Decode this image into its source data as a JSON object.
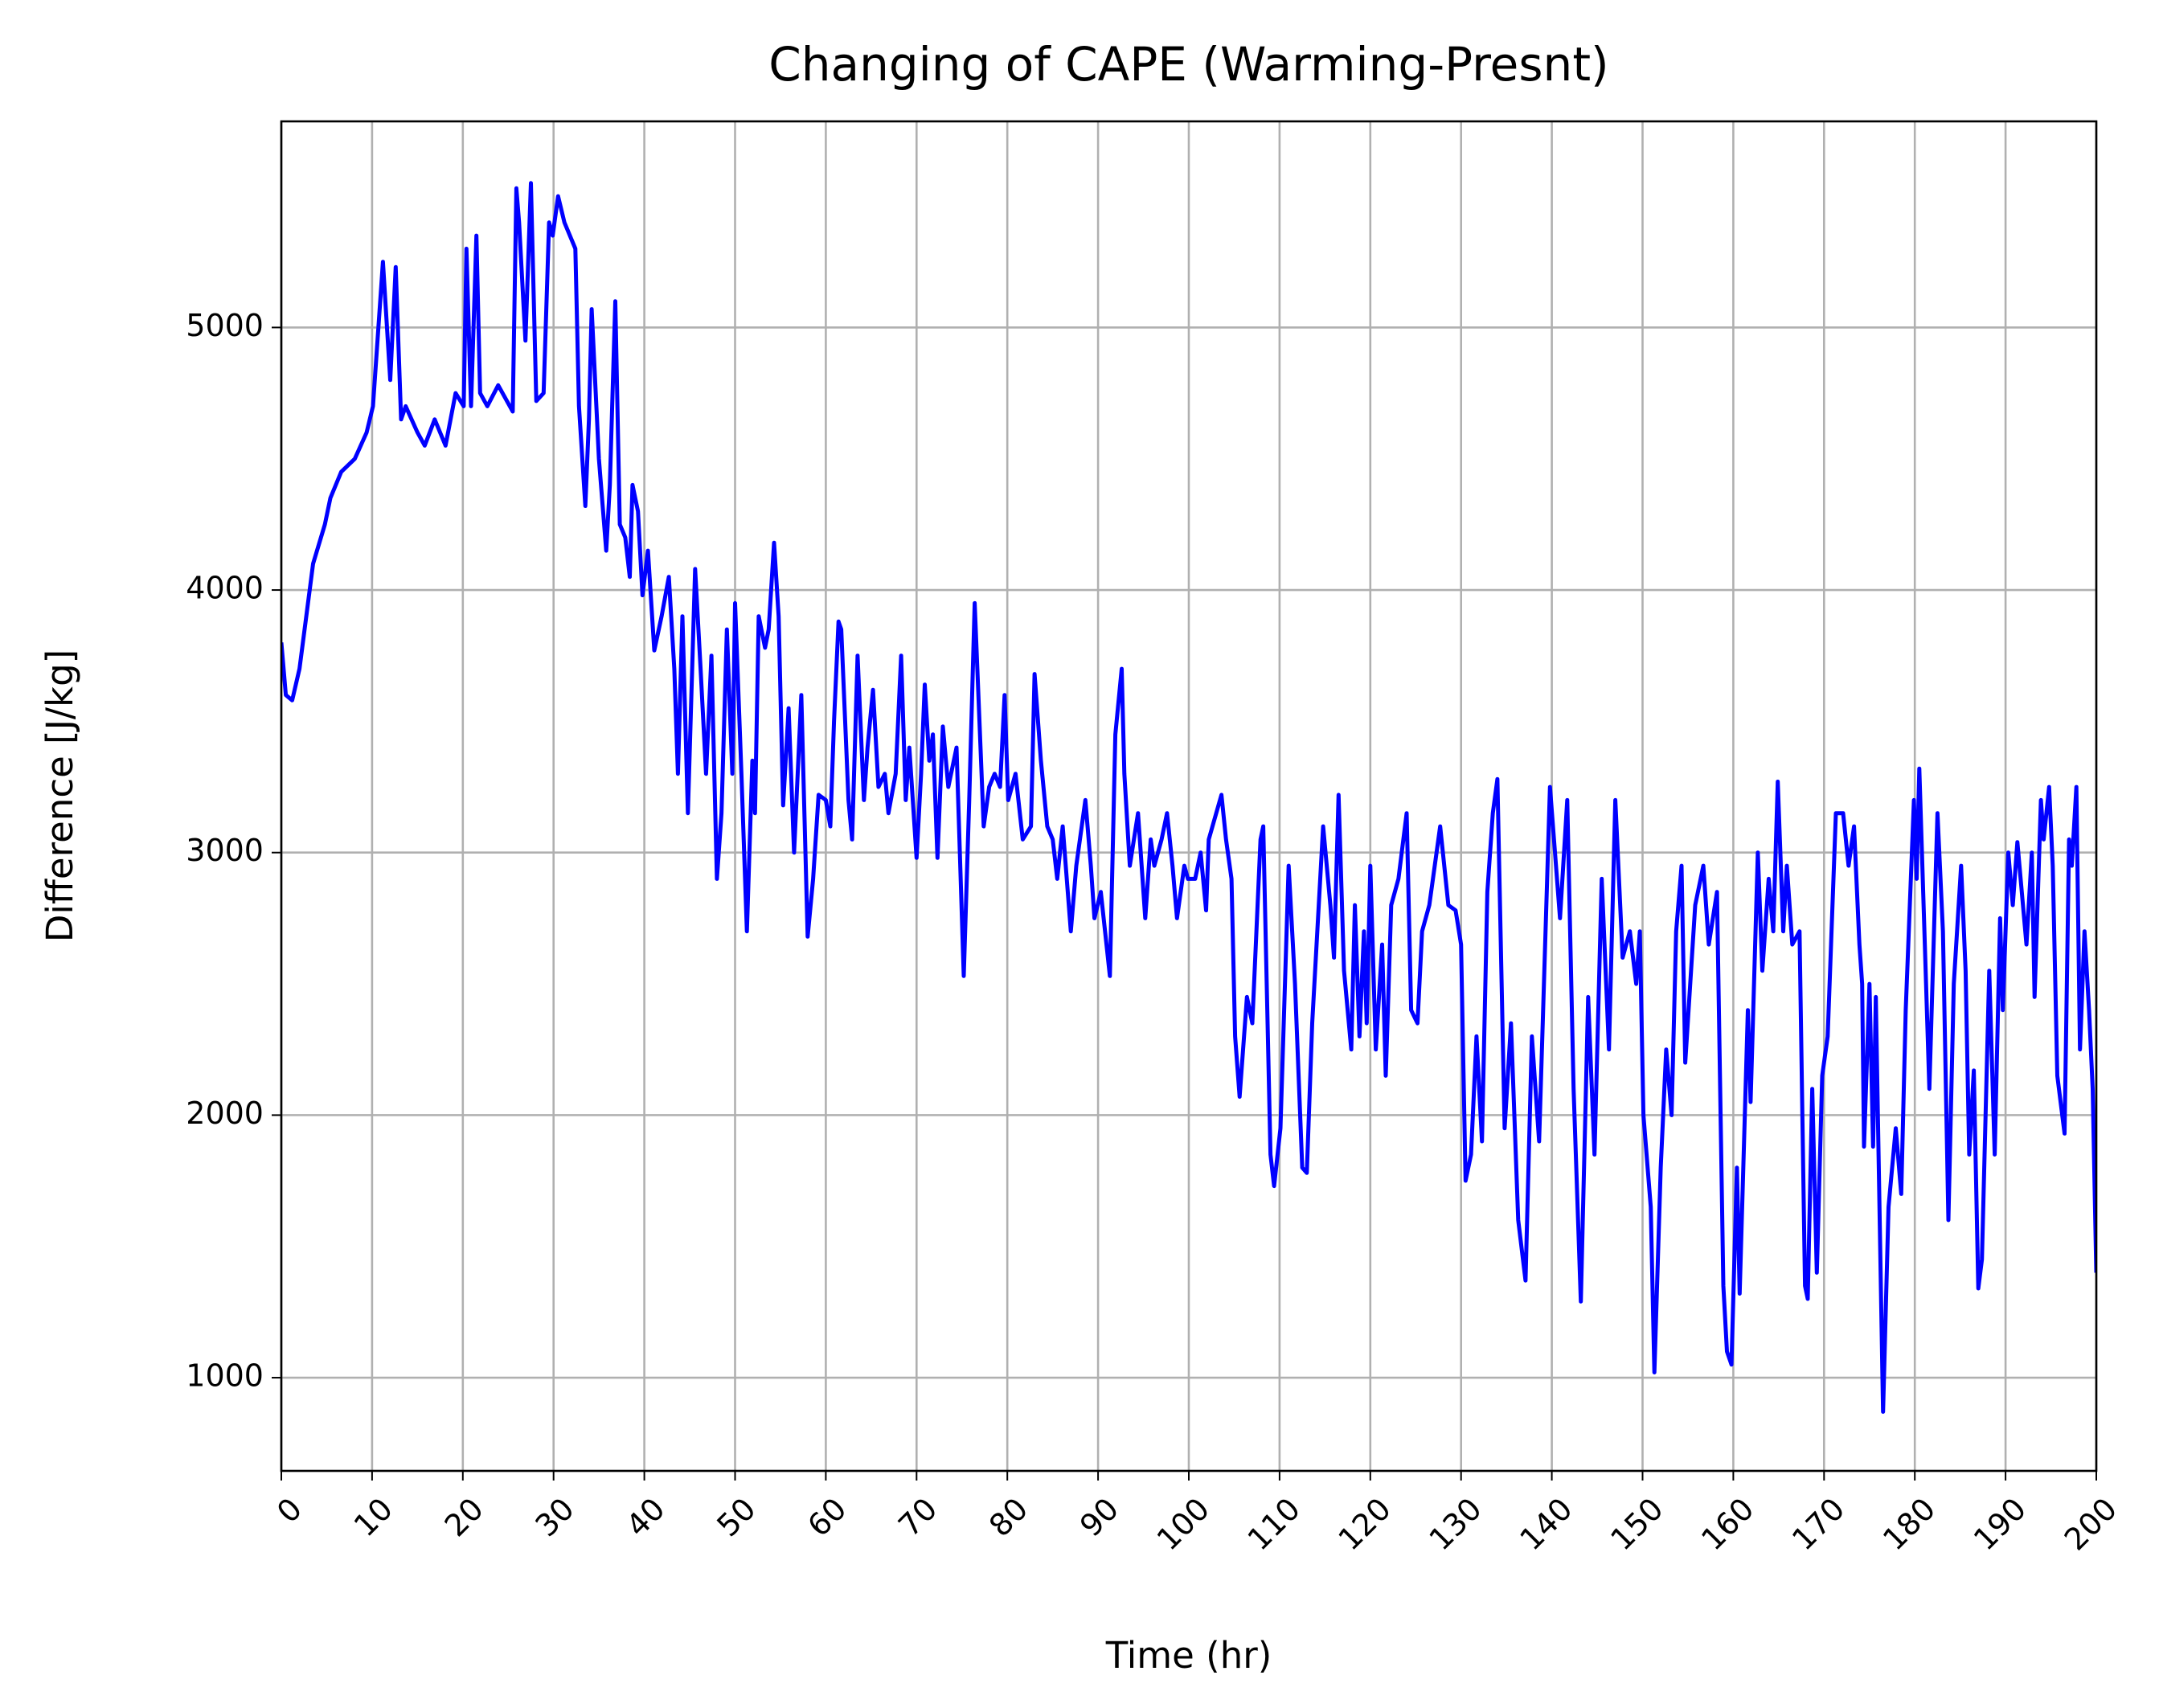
{
  "chart_data": {
    "type": "line",
    "title": "Changing of CAPE (Warming-Presnt)",
    "x_label": "Time (hr)",
    "y_label": "Difference [J/kg]",
    "xlim": [
      0,
      200
    ],
    "xticks": [
      0,
      10,
      20,
      30,
      40,
      50,
      60,
      70,
      80,
      90,
      100,
      110,
      120,
      130,
      140,
      150,
      160,
      170,
      180,
      190,
      200
    ],
    "ylim": [
      645,
      5785
    ],
    "yticks": [
      1000,
      2000,
      3000,
      4000,
      5000
    ],
    "grid": true,
    "series": [
      {
        "color": "#0000ff",
        "x": [
          0,
          0.5,
          1.2,
          2.0,
          3.5,
          4.8,
          5.4,
          6.6,
          8.1,
          9.4,
          10.1,
          11.2,
          12.0,
          12.6,
          13.2,
          13.7,
          15.0,
          15.8,
          16.9,
          18.1,
          19.2,
          20.1,
          20.4,
          20.9,
          21.5,
          21.9,
          22.7,
          23.9,
          25.5,
          25.9,
          26.2,
          26.9,
          27.5,
          28.1,
          28.9,
          29.5,
          29.9,
          30.5,
          31.2,
          32.4,
          32.8,
          33.5,
          33.9,
          34.2,
          35.0,
          35.8,
          36.2,
          36.8,
          37.3,
          37.9,
          38.4,
          38.7,
          39.3,
          39.8,
          40.4,
          41.1,
          41.9,
          42.7,
          43.3,
          43.7,
          44.2,
          44.8,
          45.6,
          46.2,
          46.8,
          47.4,
          48.0,
          48.5,
          49.1,
          49.7,
          50.0,
          50.7,
          51.3,
          51.9,
          52.2,
          52.6,
          53.3,
          53.7,
          54.3,
          54.8,
          55.3,
          55.9,
          56.5,
          57.3,
          58.0,
          58.6,
          59.2,
          60.0,
          60.5,
          60.9,
          61.4,
          61.7,
          62.5,
          62.9,
          63.5,
          64.2,
          64.6,
          65.2,
          65.8,
          66.5,
          66.9,
          67.7,
          68.3,
          68.8,
          69.2,
          70.0,
          70.5,
          70.9,
          71.4,
          71.8,
          72.3,
          72.9,
          73.5,
          74.4,
          75.2,
          75.8,
          76.4,
          76.7,
          77.4,
          78.0,
          78.6,
          79.2,
          79.7,
          80.1,
          80.9,
          81.7,
          82.6,
          83.0,
          83.7,
          84.4,
          85.0,
          85.5,
          86.1,
          87.0,
          87.6,
          88.6,
          89.2,
          89.6,
          90.3,
          91.3,
          91.9,
          92.6,
          92.9,
          93.5,
          94.4,
          95.2,
          95.8,
          96.2,
          97.0,
          97.6,
          98.2,
          98.7,
          99.5,
          99.9,
          100.7,
          101.3,
          101.9,
          102.2,
          103.6,
          104.1,
          104.7,
          105.1,
          105.6,
          106.4,
          107.0,
          107.9,
          108.2,
          109.0,
          109.4,
          110.1,
          111.0,
          111.7,
          112.5,
          113.0,
          113.6,
          114.8,
          115.6,
          116.0,
          116.5,
          117.1,
          117.9,
          118.3,
          118.8,
          119.3,
          119.6,
          120.0,
          120.6,
          121.3,
          121.7,
          122.3,
          123.1,
          124.0,
          124.5,
          125.2,
          125.7,
          126.5,
          127.7,
          128.6,
          129.4,
          130.0,
          130.5,
          131.1,
          131.7,
          132.3,
          132.9,
          133.5,
          134.0,
          134.8,
          135.5,
          136.3,
          137.1,
          137.8,
          138.6,
          139.8,
          140.9,
          141.7,
          142.4,
          143.2,
          144.0,
          144.7,
          145.5,
          146.3,
          147.0,
          147.8,
          148.6,
          149.3,
          149.7,
          150.1,
          150.9,
          151.3,
          152.0,
          152.6,
          153.2,
          153.7,
          154.3,
          154.7,
          155.8,
          156.7,
          157.3,
          158.2,
          158.9,
          159.3,
          159.8,
          160.4,
          160.7,
          161.6,
          161.9,
          162.7,
          163.2,
          163.9,
          164.4,
          164.9,
          165.5,
          165.9,
          166.5,
          167.3,
          167.9,
          168.2,
          168.7,
          169.2,
          169.8,
          170.4,
          171.3,
          172.1,
          172.7,
          173.3,
          173.9,
          174.2,
          174.4,
          175.0,
          175.4,
          175.7,
          176.5,
          177.1,
          177.9,
          178.5,
          179.0,
          179.9,
          180.2,
          180.5,
          181.6,
          182.5,
          183.1,
          183.7,
          184.3,
          185.1,
          185.6,
          186.0,
          186.5,
          187.0,
          187.4,
          188.2,
          188.8,
          189.4,
          189.7,
          190.3,
          190.8,
          191.3,
          192.3,
          192.9,
          193.2,
          193.9,
          194.2,
          194.8,
          195.2,
          195.7,
          196.5,
          197.0,
          197.3,
          197.8,
          198.2,
          198.7,
          199.2,
          199.6,
          200
        ],
        "values": [
          3800,
          3600,
          3580,
          3700,
          4100,
          4250,
          4350,
          4450,
          4500,
          4600,
          4700,
          5250,
          4800,
          5230,
          4650,
          4700,
          4600,
          4550,
          4650,
          4550,
          4750,
          4700,
          5300,
          4700,
          5350,
          4750,
          4700,
          4780,
          4680,
          5530,
          5400,
          4950,
          5550,
          4720,
          4750,
          5400,
          5350,
          5500,
          5400,
          5300,
          4700,
          4320,
          4650,
          5070,
          4500,
          4150,
          4400,
          5100,
          4250,
          4200,
          4050,
          4400,
          4300,
          3980,
          4150,
          3770,
          3900,
          4050,
          3700,
          3300,
          3900,
          3150,
          4080,
          3700,
          3300,
          3750,
          2900,
          3150,
          3850,
          3300,
          3950,
          3300,
          2700,
          3350,
          3150,
          3900,
          3780,
          3850,
          4180,
          3900,
          3180,
          3550,
          3000,
          3600,
          2680,
          2900,
          3220,
          3200,
          3100,
          3500,
          3880,
          3850,
          3200,
          3050,
          3750,
          3200,
          3400,
          3620,
          3250,
          3300,
          3150,
          3300,
          3750,
          3200,
          3400,
          2980,
          3300,
          3640,
          3350,
          3450,
          2980,
          3480,
          3250,
          3400,
          2530,
          3200,
          3950,
          3700,
          3100,
          3250,
          3300,
          3250,
          3600,
          3200,
          3300,
          3050,
          3100,
          3680,
          3350,
          3100,
          3050,
          2900,
          3100,
          2700,
          2950,
          3200,
          2950,
          2750,
          2850,
          2530,
          3450,
          3700,
          3300,
          2950,
          3150,
          2750,
          3050,
          2950,
          3050,
          3150,
          2950,
          2750,
          2950,
          2900,
          2900,
          3000,
          2780,
          3050,
          3220,
          3050,
          2900,
          2300,
          2070,
          2450,
          2350,
          3050,
          3100,
          1850,
          1730,
          1950,
          2950,
          2500,
          1800,
          1780,
          2350,
          3100,
          2800,
          2600,
          3220,
          2550,
          2250,
          2800,
          2300,
          2700,
          2350,
          2950,
          2250,
          2650,
          2150,
          2800,
          2900,
          3150,
          2400,
          2350,
          2700,
          2800,
          3100,
          2800,
          2780,
          2650,
          1750,
          1850,
          2300,
          1900,
          2850,
          3150,
          3280,
          1950,
          2350,
          1600,
          1370,
          2300,
          1900,
          3250,
          2750,
          3200,
          2100,
          1290,
          2450,
          1850,
          2900,
          2250,
          3200,
          2600,
          2700,
          2500,
          2700,
          2000,
          1650,
          1020,
          1800,
          2250,
          2000,
          2700,
          2950,
          2200,
          2800,
          2950,
          2650,
          2850,
          1350,
          1100,
          1050,
          1800,
          1320,
          2400,
          2050,
          3000,
          2550,
          2900,
          2700,
          3270,
          2700,
          2950,
          2650,
          2700,
          1350,
          1300,
          2100,
          1400,
          2150,
          2300,
          3150,
          3150,
          2950,
          3100,
          2650,
          2500,
          1880,
          2500,
          1880,
          2450,
          870,
          1650,
          1950,
          1700,
          2400,
          3200,
          2900,
          3320,
          2100,
          3150,
          2700,
          1600,
          2500,
          2950,
          2550,
          1850,
          2170,
          1340,
          1450,
          2550,
          1850,
          2750,
          2400,
          3000,
          2800,
          3040,
          2650,
          3000,
          2450,
          3200,
          3050,
          3250,
          2950,
          2150,
          1930,
          3050,
          2950,
          3250,
          2250,
          2700,
          2400,
          2100,
          1400
        ]
      }
    ]
  }
}
